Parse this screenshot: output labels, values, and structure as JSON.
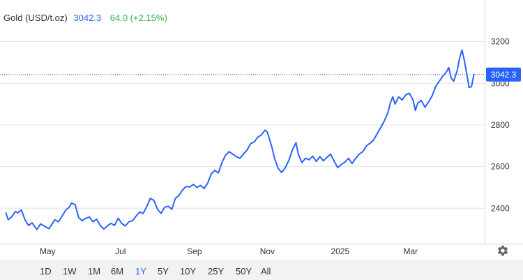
{
  "header": {
    "symbol": "Gold (USD/t.oz)",
    "price": "3042.3",
    "change": "64.0 (+2.15%)"
  },
  "chart_data": {
    "type": "line",
    "title": "Gold (USD/t.oz)",
    "xlabel": "",
    "ylabel": "",
    "ylim": [
      2230,
      3400
    ],
    "grid": true,
    "y_ticks": [
      2400,
      2600,
      2800,
      3000,
      3200
    ],
    "x_tick_labels": [
      {
        "label": "May",
        "date": "2024-05-01"
      },
      {
        "label": "Jul",
        "date": "2024-07-01"
      },
      {
        "label": "Sep",
        "date": "2024-09-01"
      },
      {
        "label": "Nov",
        "date": "2024-11-01"
      },
      {
        "label": "2025",
        "date": "2025-01-01"
      },
      {
        "label": "Mar",
        "date": "2025-03-01"
      }
    ],
    "current_value_label": "3042.3",
    "series": [
      {
        "color": "#2962ff",
        "points": [
          [
            "2024-03-27",
            2378
          ],
          [
            "2024-03-29",
            2345
          ],
          [
            "2024-04-01",
            2360
          ],
          [
            "2024-04-04",
            2385
          ],
          [
            "2024-04-06",
            2378
          ],
          [
            "2024-04-09",
            2392
          ],
          [
            "2024-04-12",
            2345
          ],
          [
            "2024-04-15",
            2318
          ],
          [
            "2024-04-18",
            2330
          ],
          [
            "2024-04-22",
            2298
          ],
          [
            "2024-04-25",
            2325
          ],
          [
            "2024-04-28",
            2315
          ],
          [
            "2024-05-02",
            2302
          ],
          [
            "2024-05-04",
            2318
          ],
          [
            "2024-05-07",
            2345
          ],
          [
            "2024-05-10",
            2335
          ],
          [
            "2024-05-13",
            2362
          ],
          [
            "2024-05-16",
            2390
          ],
          [
            "2024-05-19",
            2405
          ],
          [
            "2024-05-21",
            2425
          ],
          [
            "2024-05-24",
            2418
          ],
          [
            "2024-05-27",
            2355
          ],
          [
            "2024-05-30",
            2340
          ],
          [
            "2024-06-02",
            2352
          ],
          [
            "2024-06-05",
            2358
          ],
          [
            "2024-06-08",
            2335
          ],
          [
            "2024-06-11",
            2348
          ],
          [
            "2024-06-14",
            2318
          ],
          [
            "2024-06-17",
            2300
          ],
          [
            "2024-06-20",
            2315
          ],
          [
            "2024-06-23",
            2328
          ],
          [
            "2024-06-26",
            2318
          ],
          [
            "2024-06-29",
            2352
          ],
          [
            "2024-07-02",
            2328
          ],
          [
            "2024-07-05",
            2315
          ],
          [
            "2024-07-08",
            2335
          ],
          [
            "2024-07-11",
            2340
          ],
          [
            "2024-07-14",
            2362
          ],
          [
            "2024-07-17",
            2382
          ],
          [
            "2024-07-20",
            2375
          ],
          [
            "2024-07-23",
            2408
          ],
          [
            "2024-07-26",
            2448
          ],
          [
            "2024-07-29",
            2438
          ],
          [
            "2024-08-01",
            2395
          ],
          [
            "2024-08-04",
            2375
          ],
          [
            "2024-08-07",
            2405
          ],
          [
            "2024-08-10",
            2410
          ],
          [
            "2024-08-13",
            2395
          ],
          [
            "2024-08-16",
            2448
          ],
          [
            "2024-08-19",
            2462
          ],
          [
            "2024-08-22",
            2488
          ],
          [
            "2024-08-25",
            2505
          ],
          [
            "2024-08-28",
            2502
          ],
          [
            "2024-08-31",
            2515
          ],
          [
            "2024-09-03",
            2500
          ],
          [
            "2024-09-06",
            2510
          ],
          [
            "2024-09-09",
            2495
          ],
          [
            "2024-09-12",
            2520
          ],
          [
            "2024-09-15",
            2565
          ],
          [
            "2024-09-18",
            2582
          ],
          [
            "2024-09-21",
            2570
          ],
          [
            "2024-09-24",
            2620
          ],
          [
            "2024-09-27",
            2655
          ],
          [
            "2024-09-30",
            2672
          ],
          [
            "2024-10-03",
            2660
          ],
          [
            "2024-10-06",
            2648
          ],
          [
            "2024-10-09",
            2640
          ],
          [
            "2024-10-12",
            2660
          ],
          [
            "2024-10-15",
            2680
          ],
          [
            "2024-10-18",
            2710
          ],
          [
            "2024-10-21",
            2718
          ],
          [
            "2024-10-24",
            2742
          ],
          [
            "2024-10-27",
            2752
          ],
          [
            "2024-10-30",
            2775
          ],
          [
            "2024-11-01",
            2765
          ],
          [
            "2024-11-03",
            2728
          ],
          [
            "2024-11-05",
            2690
          ],
          [
            "2024-11-07",
            2640
          ],
          [
            "2024-11-10",
            2592
          ],
          [
            "2024-11-13",
            2572
          ],
          [
            "2024-11-16",
            2595
          ],
          [
            "2024-11-19",
            2630
          ],
          [
            "2024-11-22",
            2680
          ],
          [
            "2024-11-25",
            2715
          ],
          [
            "2024-11-27",
            2658
          ],
          [
            "2024-11-30",
            2620
          ],
          [
            "2024-12-03",
            2640
          ],
          [
            "2024-12-06",
            2633
          ],
          [
            "2024-12-09",
            2650
          ],
          [
            "2024-12-12",
            2625
          ],
          [
            "2024-12-15",
            2648
          ],
          [
            "2024-12-18",
            2628
          ],
          [
            "2024-12-21",
            2645
          ],
          [
            "2024-12-24",
            2660
          ],
          [
            "2024-12-27",
            2625
          ],
          [
            "2024-12-30",
            2595
          ],
          [
            "2025-01-02",
            2610
          ],
          [
            "2025-01-05",
            2622
          ],
          [
            "2025-01-08",
            2640
          ],
          [
            "2025-01-11",
            2615
          ],
          [
            "2025-01-14",
            2640
          ],
          [
            "2025-01-17",
            2660
          ],
          [
            "2025-01-20",
            2672
          ],
          [
            "2025-01-23",
            2700
          ],
          [
            "2025-01-26",
            2712
          ],
          [
            "2025-01-29",
            2728
          ],
          [
            "2025-02-01",
            2758
          ],
          [
            "2025-02-04",
            2788
          ],
          [
            "2025-02-07",
            2820
          ],
          [
            "2025-02-10",
            2860
          ],
          [
            "2025-02-12",
            2905
          ],
          [
            "2025-02-14",
            2935
          ],
          [
            "2025-02-16",
            2900
          ],
          [
            "2025-02-19",
            2935
          ],
          [
            "2025-02-22",
            2920
          ],
          [
            "2025-02-25",
            2945
          ],
          [
            "2025-02-28",
            2952
          ],
          [
            "2025-03-03",
            2920
          ],
          [
            "2025-03-05",
            2870
          ],
          [
            "2025-03-07",
            2905
          ],
          [
            "2025-03-10",
            2918
          ],
          [
            "2025-03-13",
            2885
          ],
          [
            "2025-03-16",
            2910
          ],
          [
            "2025-03-19",
            2940
          ],
          [
            "2025-03-22",
            2985
          ],
          [
            "2025-03-25",
            3010
          ],
          [
            "2025-03-28",
            3035
          ],
          [
            "2025-03-31",
            3055
          ],
          [
            "2025-04-02",
            3075
          ],
          [
            "2025-04-04",
            3025
          ],
          [
            "2025-04-06",
            3010
          ],
          [
            "2025-04-09",
            3060
          ],
          [
            "2025-04-11",
            3120
          ],
          [
            "2025-04-13",
            3160
          ],
          [
            "2025-04-15",
            3110
          ],
          [
            "2025-04-17",
            3045
          ],
          [
            "2025-04-19",
            2980
          ],
          [
            "2025-04-21",
            2985
          ],
          [
            "2025-04-23",
            3042.3
          ]
        ]
      }
    ]
  },
  "ranges": {
    "items": [
      "1D",
      "1W",
      "1M",
      "6M",
      "1Y",
      "5Y",
      "10Y",
      "25Y",
      "50Y",
      "All"
    ],
    "active": "1Y"
  },
  "icons": {
    "settings": "gear-icon"
  },
  "colors": {
    "line": "#2962ff",
    "positive": "#2bb24c",
    "active_range": "#2962ff",
    "text": "#333333",
    "grid": "#e6e6e6",
    "footer_bg": "#f2f2f2"
  }
}
